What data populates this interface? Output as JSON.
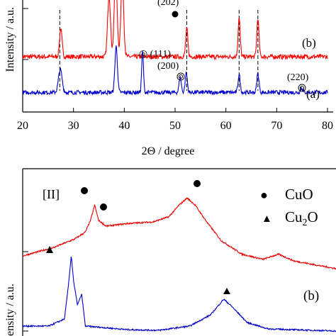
{
  "chart_data": [
    {
      "type": "line",
      "xlabel": "2Θ / degree",
      "ylabel": "Intensity / a.u.",
      "xlim": [
        20,
        80
      ],
      "x_ticks": [
        20,
        30,
        40,
        50,
        60,
        70,
        80
      ],
      "x_tick_labels": [
        "20",
        "30",
        "40",
        "50",
        "60",
        "70",
        "80"
      ],
      "grid": false,
      "dashed_reference_lines_x": [
        27.3,
        52.3,
        62.6,
        66.3
      ],
      "series": [
        {
          "label": "(b)",
          "color": "#ff0000",
          "baseline": 1.0,
          "peaks": [
            {
              "x": 27.5,
              "height": 0.55,
              "width": 0.35
            },
            {
              "x": 37.0,
              "height": 1.2,
              "width": 0.4
            },
            {
              "x": 38.3,
              "height": 1.6,
              "width": 0.4
            },
            {
              "x": 39.6,
              "height": 1.5,
              "width": 0.4
            },
            {
              "x": 52.3,
              "height": 0.55,
              "width": 0.3
            },
            {
              "x": 62.6,
              "height": 0.75,
              "width": 0.3
            },
            {
              "x": 66.3,
              "height": 0.75,
              "width": 0.3
            }
          ]
        },
        {
          "label": "(a)",
          "color": "#0000cc",
          "baseline": 0.3,
          "peaks": [
            {
              "x": 27.4,
              "height": 0.45,
              "width": 0.5
            },
            {
              "x": 38.4,
              "height": 0.9,
              "width": 0.35
            },
            {
              "x": 43.6,
              "height": 0.8,
              "width": 0.25
            },
            {
              "x": 51.0,
              "height": 0.3,
              "width": 0.3
            },
            {
              "x": 52.2,
              "height": 0.38,
              "width": 0.3
            },
            {
              "x": 62.6,
              "height": 0.35,
              "width": 0.3
            },
            {
              "x": 66.3,
              "height": 0.38,
              "width": 0.3
            },
            {
              "x": 74.9,
              "height": 0.1,
              "width": 0.3
            }
          ]
        }
      ],
      "annotations": [
        {
          "text": "(202)",
          "marker": "dot",
          "x": 50.0
        },
        {
          "text": "◎ (111)",
          "x": 43.6
        },
        {
          "text": "(200)",
          "marker": "circle-dot",
          "x": 51.0
        },
        {
          "text": "(220)",
          "marker": "circle-dot",
          "x": 74.9
        }
      ]
    },
    {
      "type": "line",
      "panel_label": "[II]",
      "ylabel": "ensity / a.u.",
      "xlim": [
        20,
        80
      ],
      "legend": {
        "placement": "top-right",
        "entries": [
          {
            "marker": "●",
            "text": "CuO"
          },
          {
            "marker": "▲",
            "text": "Cu2O"
          }
        ]
      },
      "series": [
        {
          "color": "#ee0000",
          "shape": [
            [
              20,
              0.2
            ],
            [
              26,
              0.3
            ],
            [
              30,
              0.4
            ],
            [
              32,
              0.48
            ],
            [
              33.0,
              0.62
            ],
            [
              33.8,
              0.8
            ],
            [
              34.5,
              0.62
            ],
            [
              36.0,
              0.55
            ],
            [
              40,
              0.58
            ],
            [
              45,
              0.6
            ],
            [
              48,
              0.66
            ],
            [
              50,
              0.8
            ],
            [
              51.5,
              0.88
            ],
            [
              53,
              0.8
            ],
            [
              55,
              0.62
            ],
            [
              58,
              0.38
            ],
            [
              62,
              0.22
            ],
            [
              66,
              0.16
            ],
            [
              69,
              0.22
            ],
            [
              72,
              0.14
            ],
            [
              80,
              0.05
            ]
          ]
        },
        {
          "color": "#0000cc",
          "label": "(b)",
          "shape": [
            [
              20,
              0.1
            ],
            [
              25,
              0.1
            ],
            [
              28,
              0.2
            ],
            [
              28.8,
              0.7
            ],
            [
              29.3,
              1.1
            ],
            [
              29.8,
              0.7
            ],
            [
              30.5,
              0.4
            ],
            [
              31.3,
              0.55
            ],
            [
              32,
              0.1
            ],
            [
              40,
              0.05
            ],
            [
              46,
              0.04
            ],
            [
              52,
              0.1
            ],
            [
              56,
              0.26
            ],
            [
              58.5,
              0.48
            ],
            [
              60,
              0.38
            ],
            [
              63,
              0.15
            ],
            [
              67,
              0.06
            ],
            [
              80,
              0.03
            ]
          ]
        }
      ],
      "annotations": [
        {
          "marker": "●",
          "x": 33.8
        },
        {
          "marker": "●",
          "x": 36.0
        },
        {
          "marker": "●",
          "x": 51.5
        },
        {
          "marker": "▲",
          "x": 29.3
        },
        {
          "marker": "▲",
          "x": 58.5
        }
      ]
    }
  ]
}
